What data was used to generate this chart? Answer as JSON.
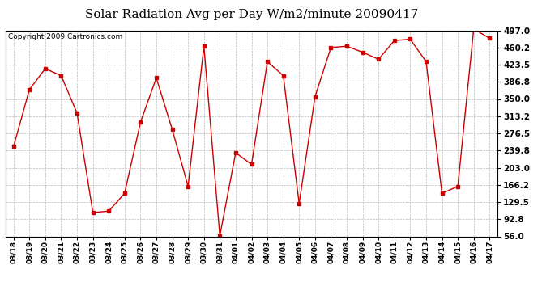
{
  "title": "Solar Radiation Avg per Day W/m2/minute 20090417",
  "copyright": "Copyright 2009 Cartronics.com",
  "labels": [
    "03/18",
    "03/19",
    "03/20",
    "03/21",
    "03/22",
    "03/23",
    "03/24",
    "03/25",
    "03/26",
    "03/27",
    "03/28",
    "03/29",
    "03/30",
    "03/31",
    "04/01",
    "04/02",
    "04/03",
    "04/04",
    "04/05",
    "04/06",
    "04/07",
    "04/08",
    "04/09",
    "04/10",
    "04/11",
    "04/12",
    "04/13",
    "04/14",
    "04/15",
    "04/16",
    "04/17"
  ],
  "values": [
    248,
    370,
    415,
    400,
    320,
    107,
    110,
    148,
    300,
    395,
    285,
    163,
    463,
    57,
    235,
    210,
    430,
    400,
    126,
    355,
    460,
    463,
    450,
    435,
    475,
    478,
    430,
    148,
    163,
    500,
    480
  ],
  "line_color": "#cc0000",
  "marker": "s",
  "marker_color": "#cc0000",
  "marker_size": 3,
  "bg_color": "#ffffff",
  "plot_bg_color": "#ffffff",
  "grid_color": "#aaaaaa",
  "title_fontsize": 11,
  "copyright_fontsize": 6.5,
  "yticks": [
    56.0,
    92.8,
    129.5,
    166.2,
    203.0,
    239.8,
    276.5,
    313.2,
    350.0,
    386.8,
    423.5,
    460.2,
    497.0
  ],
  "ylim": [
    56.0,
    497.0
  ],
  "tick_fontsize": 7.5,
  "xtick_fontsize": 6.5
}
